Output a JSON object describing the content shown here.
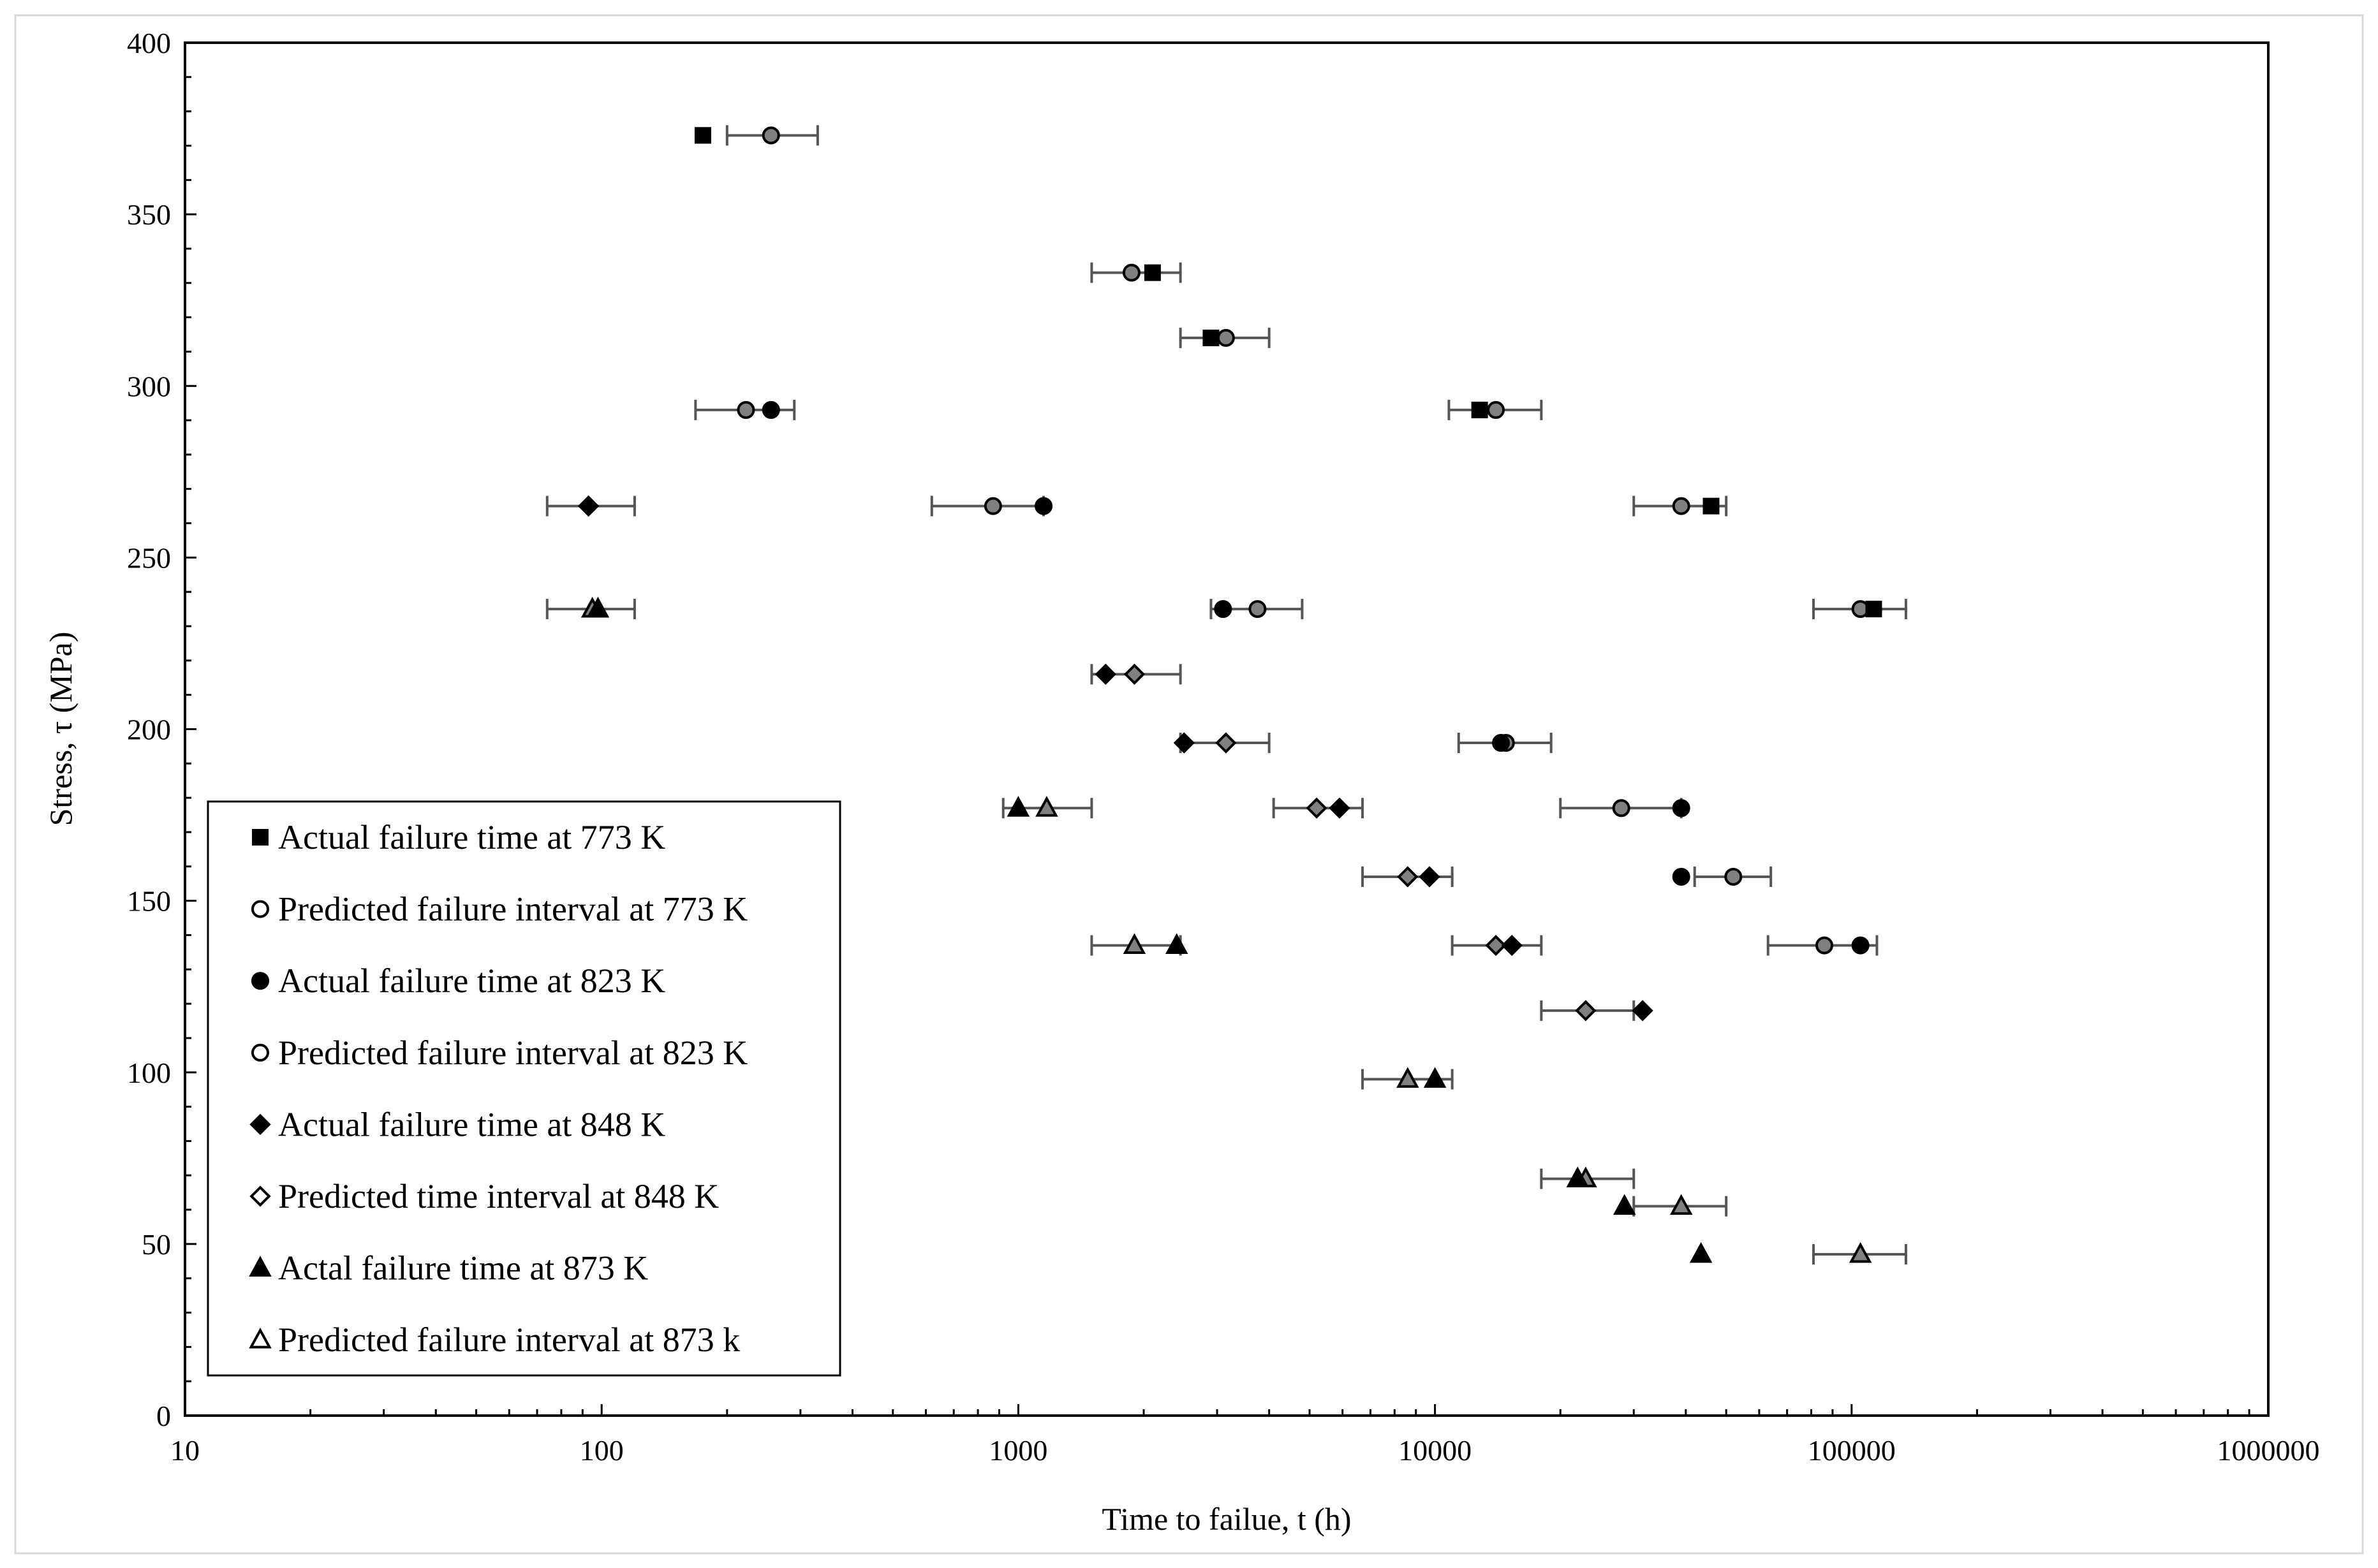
{
  "chart_data": {
    "type": "scatter",
    "xlabel": "Time  to failue,  t (h)",
    "ylabel": "Stress, τ (MPa)",
    "x_scale": "log",
    "xlim": [
      10,
      1000000
    ],
    "ylim": [
      0,
      400
    ],
    "x_ticks": [
      10,
      100,
      1000,
      10000,
      100000,
      1000000
    ],
    "x_tick_labels": [
      "10",
      "100",
      "1000",
      "10000",
      "100000",
      "1000000"
    ],
    "y_ticks": [
      0,
      50,
      100,
      150,
      200,
      250,
      300,
      350,
      400
    ],
    "y_tick_labels": [
      "0",
      "50",
      "100",
      "150",
      "200",
      "250",
      "300",
      "350",
      "400"
    ],
    "grid": false,
    "legend_position": "lower-left",
    "series": [
      {
        "name": "Actual failure time at 773 K",
        "marker": "square",
        "fill": "#000000",
        "points": [
          {
            "x": 175,
            "y": 373
          },
          {
            "x": 2100,
            "y": 333
          },
          {
            "x": 2900,
            "y": 314
          },
          {
            "x": 12800,
            "y": 293
          },
          {
            "x": 46000,
            "y": 265
          },
          {
            "x": 113000,
            "y": 235
          }
        ]
      },
      {
        "name": "Predicted  failure interval at 773 K",
        "marker": "circle",
        "fill": "#808080",
        "points": [
          {
            "x": 255,
            "y": 373,
            "xmin": 200,
            "xmax": 330
          },
          {
            "x": 1870,
            "y": 333,
            "xmin": 1500,
            "xmax": 2450
          },
          {
            "x": 3150,
            "y": 314,
            "xmin": 2450,
            "xmax": 4000
          },
          {
            "x": 14000,
            "y": 293,
            "xmin": 10800,
            "xmax": 18000
          },
          {
            "x": 39000,
            "y": 265,
            "xmin": 30000,
            "xmax": 50000
          },
          {
            "x": 105000,
            "y": 235,
            "xmin": 81000,
            "xmax": 135000
          }
        ]
      },
      {
        "name": "Actual failure time at 823 K",
        "marker": "circle",
        "fill": "#000000",
        "points": [
          {
            "x": 255,
            "y": 293
          },
          {
            "x": 1150,
            "y": 265
          },
          {
            "x": 3100,
            "y": 235
          },
          {
            "x": 14400,
            "y": 196
          },
          {
            "x": 39000,
            "y": 177
          },
          {
            "x": 39000,
            "y": 157
          },
          {
            "x": 105000,
            "y": 137
          }
        ]
      },
      {
        "name": "Predicted failure interval at 823 K",
        "marker": "circle",
        "fill": "#808080",
        "points": [
          {
            "x": 222,
            "y": 293,
            "xmin": 168,
            "xmax": 290
          },
          {
            "x": 870,
            "y": 265,
            "xmin": 620,
            "xmax": 1150
          },
          {
            "x": 3750,
            "y": 235,
            "xmin": 2900,
            "xmax": 4800
          },
          {
            "x": 14800,
            "y": 196,
            "xmin": 11400,
            "xmax": 19000
          },
          {
            "x": 28000,
            "y": 177,
            "xmin": 20000,
            "xmax": 39000
          },
          {
            "x": 52000,
            "y": 157,
            "xmin": 42000,
            "xmax": 64000
          },
          {
            "x": 86000,
            "y": 137,
            "xmin": 63000,
            "xmax": 115000
          }
        ]
      },
      {
        "name": "Actual failure time at 848 K",
        "marker": "diamond",
        "fill": "#000000",
        "points": [
          {
            "x": 93,
            "y": 265
          },
          {
            "x": 1620,
            "y": 216
          },
          {
            "x": 2500,
            "y": 196
          },
          {
            "x": 5900,
            "y": 177
          },
          {
            "x": 9700,
            "y": 157
          },
          {
            "x": 15300,
            "y": 137
          },
          {
            "x": 31500,
            "y": 118
          }
        ]
      },
      {
        "name": "Predicted time interval at 848 K",
        "marker": "diamond",
        "fill": "#808080",
        "points": [
          {
            "x": 93,
            "y": 265,
            "xmin": 74,
            "xmax": 120
          },
          {
            "x": 1900,
            "y": 216,
            "xmin": 1500,
            "xmax": 2450
          },
          {
            "x": 3150,
            "y": 196,
            "xmin": 2450,
            "xmax": 4000
          },
          {
            "x": 5200,
            "y": 177,
            "xmin": 4100,
            "xmax": 6700
          },
          {
            "x": 8600,
            "y": 157,
            "xmin": 6700,
            "xmax": 11000
          },
          {
            "x": 14000,
            "y": 137,
            "xmin": 11000,
            "xmax": 18000
          },
          {
            "x": 23000,
            "y": 118,
            "xmin": 18000,
            "xmax": 30000
          }
        ]
      },
      {
        "name": "Actal failure time at 873 K",
        "marker": "triangle",
        "fill": "#000000",
        "points": [
          {
            "x": 98,
            "y": 235
          },
          {
            "x": 1000,
            "y": 177
          },
          {
            "x": 2400,
            "y": 137
          },
          {
            "x": 10000,
            "y": 98
          },
          {
            "x": 22000,
            "y": 69
          },
          {
            "x": 28500,
            "y": 61
          },
          {
            "x": 43500,
            "y": 47
          }
        ]
      },
      {
        "name": "Predicted failure interval at 873 k",
        "marker": "triangle",
        "fill": "#808080",
        "points": [
          {
            "x": 95,
            "y": 235,
            "xmin": 74,
            "xmax": 120
          },
          {
            "x": 1170,
            "y": 177,
            "xmin": 920,
            "xmax": 1500
          },
          {
            "x": 1900,
            "y": 137,
            "xmin": 1500,
            "xmax": 2450
          },
          {
            "x": 8600,
            "y": 98,
            "xmin": 6700,
            "xmax": 11000
          },
          {
            "x": 23000,
            "y": 69,
            "xmin": 18000,
            "xmax": 30000
          },
          {
            "x": 39000,
            "y": 61,
            "xmin": 30000,
            "xmax": 50000
          },
          {
            "x": 105000,
            "y": 47,
            "xmin": 81000,
            "xmax": 135000
          }
        ]
      }
    ]
  }
}
